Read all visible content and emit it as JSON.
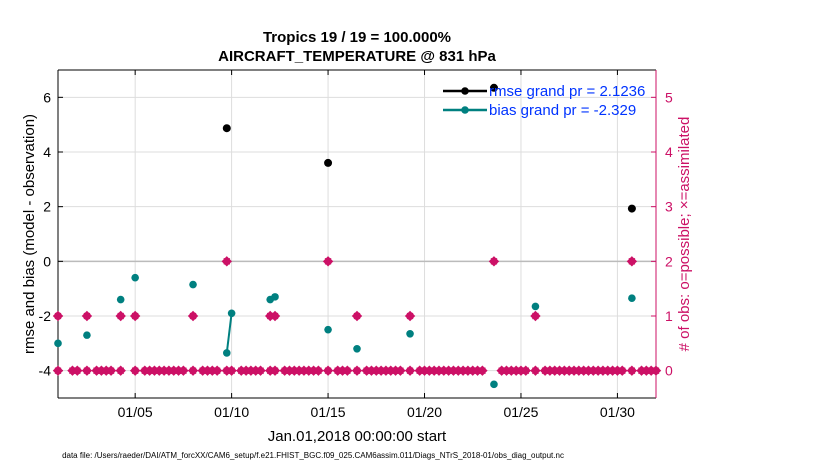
{
  "chart_data": {
    "type": "scatter",
    "title_line1": "Tropics 19 / 19 = 100.000%",
    "title_line2": "AIRCRAFT_TEMPERATURE @ 831 hPa",
    "xlabel": "Jan.01,2018 00:00:00 start",
    "ylabel_left": "rmse and bias (model - observation)",
    "ylabel_right": "# of obs: o=possible; ×=assimilated",
    "footer": "data file: /Users/raeder/DAI/ATM_forcXX/CAM6_setup/f.e21.FHIST_BGC.f09_025.CAM6assim.011/Diags_NTrS_2018-01/obs_diag_output.nc",
    "xlim": [
      1,
      32
    ],
    "ylim_left": [
      -5,
      7
    ],
    "ylim_right": [
      -0.5,
      5.5
    ],
    "x_ticks": [
      5,
      10,
      15,
      20,
      25,
      30
    ],
    "x_tick_labels": [
      "01/05",
      "01/10",
      "01/15",
      "01/20",
      "01/25",
      "01/30"
    ],
    "y_ticks_left": [
      -4,
      -2,
      0,
      2,
      4,
      6
    ],
    "y_ticks_right": [
      0,
      1,
      2,
      3,
      4,
      5
    ],
    "zero_line": 0,
    "colors": {
      "rmse": "#000000",
      "bias": "#008080",
      "obs": "#cc1166",
      "legend_text": "#0033ff",
      "grid": "#dddddd",
      "zero": "#bbbbbb"
    },
    "legend": [
      {
        "name": "rmse",
        "label": "rmse grand pr = 2.1236"
      },
      {
        "name": "bias",
        "label": "bias grand pr = -2.329"
      }
    ],
    "rmse": {
      "x": [
        9.75,
        15.0,
        23.6,
        30.75
      ],
      "y": [
        4.87,
        3.6,
        6.35,
        1.93
      ]
    },
    "bias": {
      "points": [
        [
          1.0,
          -3.0
        ],
        [
          2.5,
          -2.7
        ],
        [
          4.25,
          -1.4
        ],
        [
          5.0,
          -0.6
        ],
        [
          8.0,
          -0.85
        ],
        [
          12.0,
          -1.4
        ],
        [
          12.25,
          -1.3
        ],
        [
          15.0,
          -2.5
        ],
        [
          16.5,
          -3.2
        ],
        [
          19.25,
          -2.65
        ],
        [
          23.6,
          -4.5
        ],
        [
          25.75,
          -1.65
        ],
        [
          30.75,
          -1.35
        ]
      ],
      "segment": [
        [
          9.75,
          -3.35
        ],
        [
          10.0,
          -1.9
        ]
      ]
    },
    "obs_possible": {
      "step": 0.25,
      "start": 1.0,
      "end": 32.0,
      "value_zero_gaps": [
        1.25,
        1.5,
        2.25,
        2.75,
        4.0,
        4.5,
        4.75,
        5.25,
        7.75,
        8.25,
        9.5,
        10.25,
        11.75,
        12.5,
        14.75,
        15.25,
        16.25,
        16.75,
        19.0,
        19.5,
        23.25,
        23.5,
        23.75,
        25.5,
        26.0,
        30.5,
        31.0
      ],
      "ones": [
        1.0,
        2.5,
        4.25,
        5.0,
        8.0,
        12.0,
        12.25,
        16.5,
        19.25,
        25.75
      ],
      "twos": [
        9.75,
        15.0,
        23.6,
        30.75
      ]
    }
  }
}
